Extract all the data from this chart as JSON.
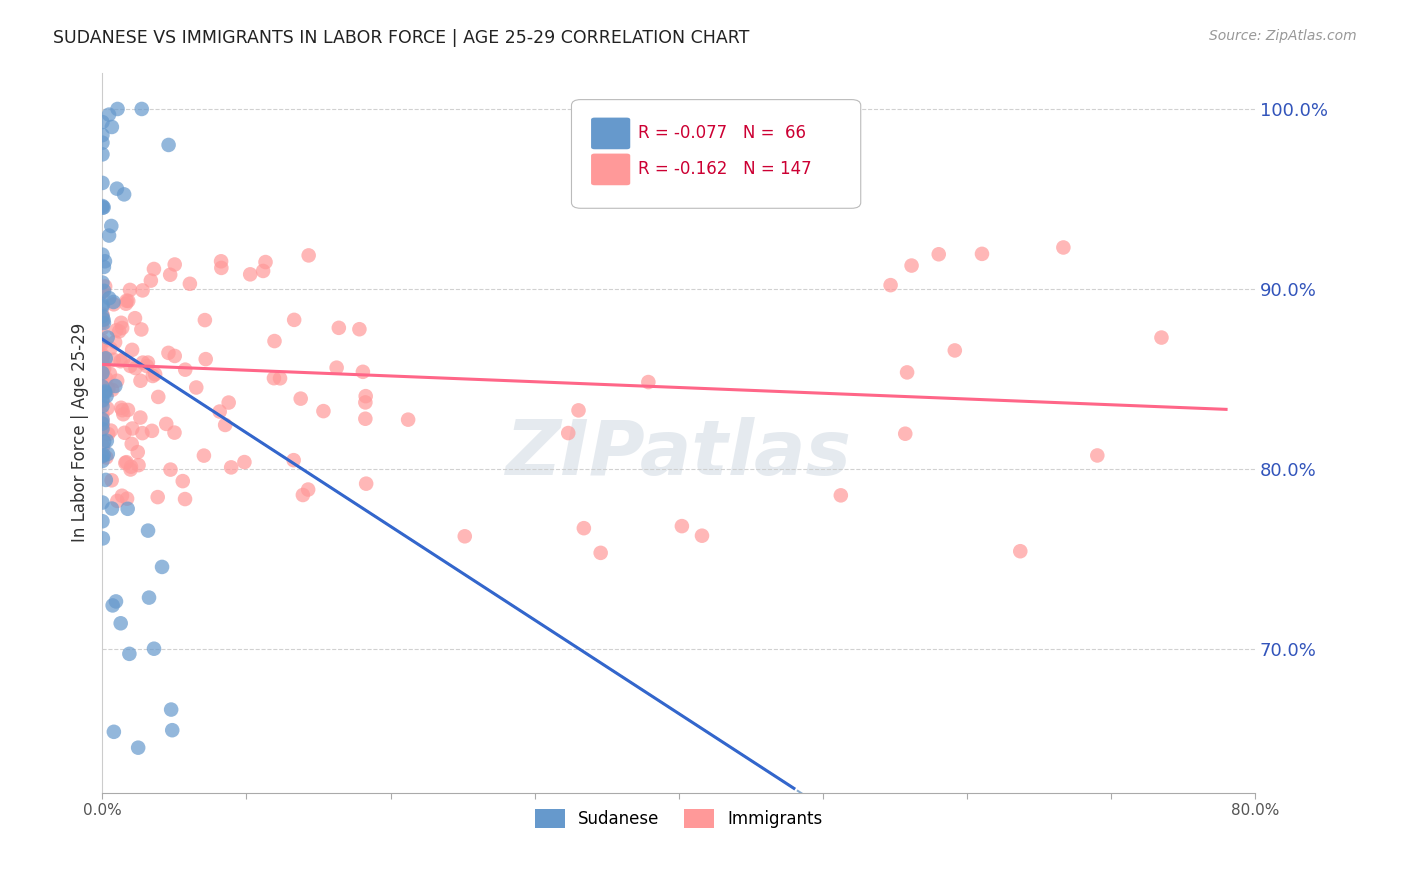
{
  "title": "SUDANESE VS IMMIGRANTS IN LABOR FORCE | AGE 25-29 CORRELATION CHART",
  "source_text": "Source: ZipAtlas.com",
  "ylabel": "In Labor Force | Age 25-29",
  "xlim": [
    0.0,
    0.8
  ],
  "ylim": [
    0.62,
    1.02
  ],
  "yticks": [
    0.7,
    0.8,
    0.9,
    1.0
  ],
  "ytick_labels": [
    "70.0%",
    "80.0%",
    "90.0%",
    "100.0%"
  ],
  "legend_blue_r": "-0.077",
  "legend_blue_n": "66",
  "legend_pink_r": "-0.162",
  "legend_pink_n": "147",
  "blue_color": "#6699CC",
  "pink_color": "#FF9999",
  "trend_blue_solid_color": "#3366CC",
  "trend_blue_dash_color": "#88AACE",
  "trend_pink_color": "#FF6688",
  "watermark_color": "#AABBCC",
  "background_color": "#FFFFFF",
  "sud_slope": -0.52,
  "sud_intercept": 0.872,
  "imm_slope": -0.032,
  "imm_intercept": 0.858
}
